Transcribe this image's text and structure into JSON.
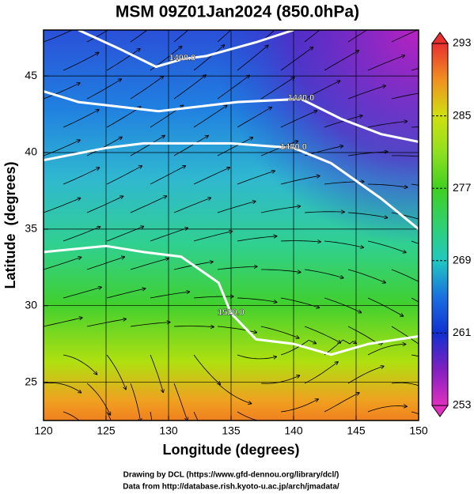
{
  "chart_data": {
    "type": "map",
    "title": "MSM 09Z01Jan2024 (850.0hPa)",
    "x_label": "Longitude (degrees)",
    "y_label": "Latitude  (degrees)",
    "xlim": [
      120,
      150
    ],
    "ylim": [
      22.5,
      48
    ],
    "xticks": [
      120,
      125,
      130,
      135,
      140,
      145,
      150
    ],
    "yticks": [
      25,
      30,
      35,
      40,
      45
    ],
    "grid": true,
    "contour_color": "#ffffff",
    "contours": [
      {
        "value": 1400,
        "label": "1400.0",
        "lon": [
          122.8,
          126,
          129,
          131.1,
          133,
          137,
          140
        ],
        "lat": [
          48,
          46.8,
          45.6,
          46.1,
          46.3,
          47.2,
          48
        ]
      },
      {
        "value": 1440,
        "label": "1440.0",
        "lon": [
          120,
          122.8,
          129.2,
          135.5,
          140.6,
          143.8,
          147,
          150
        ],
        "lat": [
          44,
          43.3,
          42.7,
          43.3,
          43.5,
          42.2,
          41.2,
          40.7
        ]
      },
      {
        "value": 1480,
        "label": "1480.0",
        "lon": [
          120,
          125,
          128,
          135,
          140,
          143,
          147,
          150
        ],
        "lat": [
          39.5,
          40.3,
          40.6,
          40.6,
          40.3,
          39.3,
          37,
          35
        ]
      },
      {
        "value": 1520,
        "label": "1520.0",
        "lon": [
          120,
          125,
          128,
          131,
          134,
          135,
          137,
          140,
          143,
          146,
          150
        ],
        "lat": [
          33.5,
          33.9,
          33.5,
          33.2,
          31.5,
          29.5,
          27.8,
          27.5,
          26.8,
          27.5,
          28
        ]
      }
    ],
    "colorbar": {
      "lim": [
        253,
        293
      ],
      "ticks": [
        253,
        261,
        269,
        277,
        285,
        293
      ],
      "colors": [
        "#e030c0",
        "#8020c0",
        "#1030d0",
        "#1a70e0",
        "#20c8c0",
        "#30d070",
        "#40d020",
        "#90e020",
        "#d0e010",
        "#f09020",
        "#e83030"
      ]
    }
  },
  "footer": {
    "line1": "Drawing by DCL (https://www.gfd-dennou.org/library/dcl/)",
    "line2": "Data from http://database.rish.kyoto-u.ac.jp/arch/jmadata/"
  }
}
